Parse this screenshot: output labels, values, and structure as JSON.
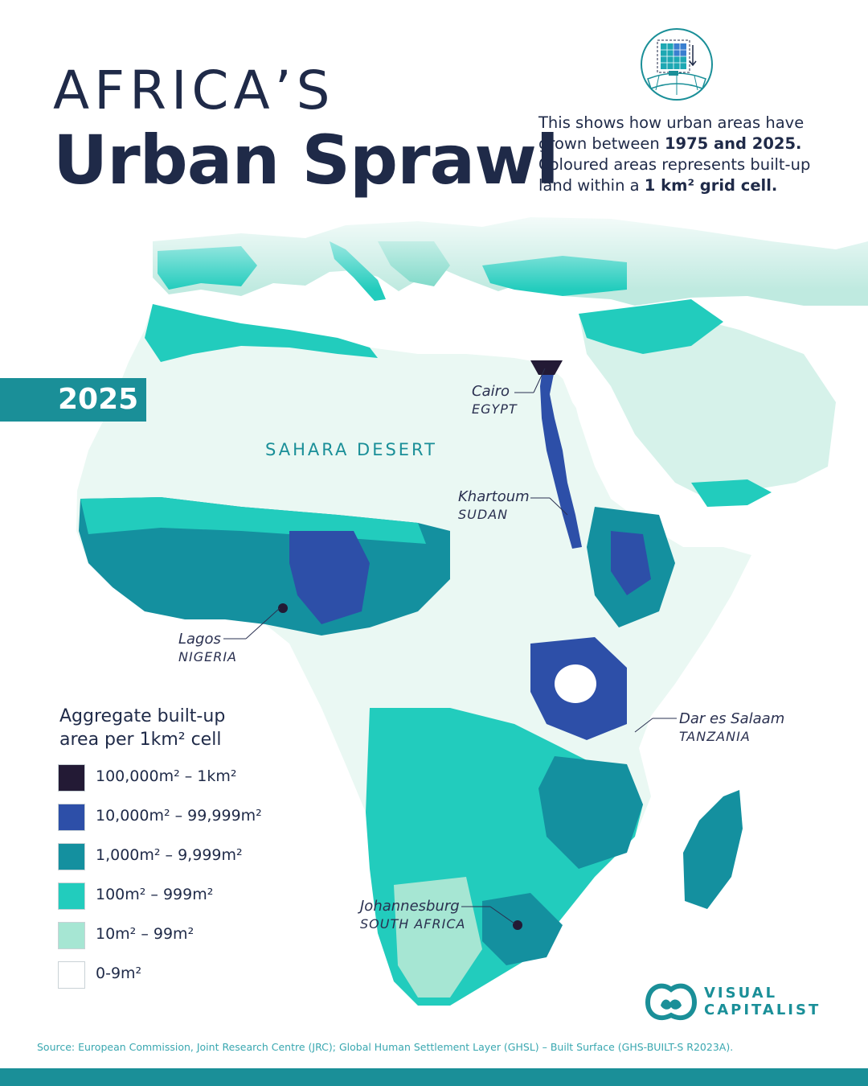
{
  "header": {
    "title_line1": "AFRICA’S",
    "title_line2": "Urban Sprawl"
  },
  "intro": {
    "part1": "This shows how urban areas have grown between ",
    "bold1": "1975 and 2025.",
    "part2": " Coloured areas represents built-up land within a ",
    "bold2": "1 km² grid cell."
  },
  "year": "2025",
  "map": {
    "region_label": "SAHARA DESERT",
    "cities": [
      {
        "name": "Cairo",
        "country": "EGYPT"
      },
      {
        "name": "Khartoum",
        "country": "SUDAN"
      },
      {
        "name": "Lagos",
        "country": "NIGERIA"
      },
      {
        "name": "Dar es Salaam",
        "country": "TANZANIA"
      },
      {
        "name": "Johannesburg",
        "country": "SOUTH AFRICA"
      }
    ]
  },
  "legend": {
    "title": "Aggregate built-up area per 1km² cell",
    "items": [
      {
        "label": "100,000m² – 1km²",
        "color": "#231a35"
      },
      {
        "label": "10,000m² – 99,999m²",
        "color": "#2d4fa8"
      },
      {
        "label": "1,000m² – 9,999m²",
        "color": "#14909f"
      },
      {
        "label": "100m² – 999m²",
        "color": "#22ccbd"
      },
      {
        "label": "10m² – 99m²",
        "color": "#a6e6d3"
      },
      {
        "label": "0-9m²",
        "color": "#ffffff"
      }
    ]
  },
  "brand": {
    "line1": "VISUAL",
    "line2": "CAPITALIST",
    "accent": "#1a8f98"
  },
  "source": "Source: European Commission, Joint Research Centre (JRC); Global Human Settlement Layer (GHSL) – Built Surface (GHS-BUILT-S R2023A)."
}
